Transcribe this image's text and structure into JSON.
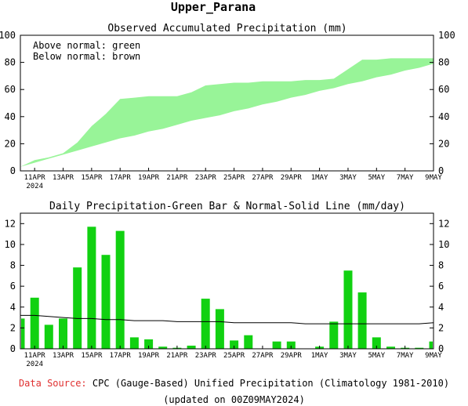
{
  "page_title": "Upper_Parana",
  "footer": {
    "source_label": "Data Source:",
    "source_text": "CPC (Gauge-Based) Unified Precipitation (Climatology 1981-2010)",
    "updated": "(updated on 00Z09MAY2024)"
  },
  "colors": {
    "green_bar": "#11d111",
    "accumulated_fill": "#98f498",
    "source_label": "#e03030"
  },
  "x_ticks": [
    "11APR",
    "13APR",
    "15APR",
    "17APR",
    "19APR",
    "21APR",
    "23APR",
    "25APR",
    "27APR",
    "29APR",
    "1MAY",
    "3MAY",
    "5MAY",
    "7MAY",
    "9MAY"
  ],
  "x_year_label": "2024",
  "chart_data": [
    {
      "type": "area",
      "title": "Observed Accumulated Precipitation (mm)",
      "annotation_lines": [
        "Above normal: green",
        "Below normal: brown"
      ],
      "x": [
        "10APR",
        "11APR",
        "12APR",
        "13APR",
        "14APR",
        "15APR",
        "16APR",
        "17APR",
        "18APR",
        "19APR",
        "20APR",
        "21APR",
        "22APR",
        "23APR",
        "24APR",
        "25APR",
        "26APR",
        "27APR",
        "28APR",
        "29APR",
        "30APR",
        "1MAY",
        "2MAY",
        "3MAY",
        "4MAY",
        "5MAY",
        "6MAY",
        "7MAY",
        "8MAY",
        "9MAY"
      ],
      "series": [
        {
          "name": "Observed",
          "values": [
            3,
            8,
            10,
            13,
            21,
            33,
            42,
            53,
            54,
            55,
            55,
            55,
            58,
            63,
            64,
            65,
            65,
            66,
            66,
            66,
            67,
            67,
            68,
            75,
            82,
            82,
            83,
            83,
            83,
            83
          ]
        },
        {
          "name": "Normal",
          "values": [
            3,
            6,
            9,
            12,
            15,
            18,
            21,
            24,
            26,
            29,
            31,
            34,
            37,
            39,
            41,
            44,
            46,
            49,
            51,
            54,
            56,
            59,
            61,
            64,
            66,
            69,
            71,
            74,
            76,
            79
          ]
        }
      ],
      "ylim": [
        0,
        100
      ],
      "yticks": [
        0,
        20,
        40,
        60,
        80,
        100
      ]
    },
    {
      "type": "bar",
      "title": "Daily Precipitation-Green Bar & Normal-Solid Line (mm/day)",
      "x": [
        "10APR",
        "11APR",
        "12APR",
        "13APR",
        "14APR",
        "15APR",
        "16APR",
        "17APR",
        "18APR",
        "19APR",
        "20APR",
        "21APR",
        "22APR",
        "23APR",
        "24APR",
        "25APR",
        "26APR",
        "27APR",
        "28APR",
        "29APR",
        "30APR",
        "1MAY",
        "2MAY",
        "3MAY",
        "4MAY",
        "5MAY",
        "6MAY",
        "7MAY",
        "8MAY",
        "9MAY"
      ],
      "series": [
        {
          "name": "Daily",
          "values": [
            2.9,
            4.9,
            2.3,
            2.9,
            7.8,
            11.7,
            9.0,
            11.3,
            1.1,
            0.9,
            0.2,
            0.1,
            0.3,
            4.8,
            3.8,
            0.8,
            1.3,
            0.0,
            0.7,
            0.7,
            0.0,
            0.2,
            2.6,
            7.5,
            5.4,
            1.1,
            0.2,
            0.1,
            0.1,
            0.7
          ]
        },
        {
          "name": "Normal",
          "values": [
            3.2,
            3.2,
            3.1,
            3.0,
            2.9,
            2.9,
            2.8,
            2.8,
            2.7,
            2.7,
            2.7,
            2.6,
            2.6,
            2.6,
            2.6,
            2.5,
            2.5,
            2.5,
            2.5,
            2.5,
            2.4,
            2.4,
            2.4,
            2.4,
            2.4,
            2.4,
            2.4,
            2.4,
            2.4,
            2.5
          ]
        }
      ],
      "ylim": [
        0,
        13
      ],
      "yticks": [
        0,
        2,
        4,
        6,
        8,
        10,
        12
      ]
    }
  ]
}
